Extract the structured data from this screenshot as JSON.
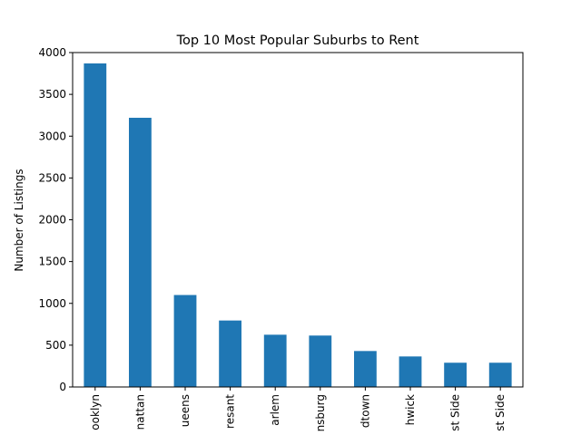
{
  "chart_data": {
    "type": "bar",
    "title": "Top 10 Most Popular Suburbs to Rent",
    "xlabel": "",
    "ylabel": "Number of Listings",
    "categories": [
      "ooklyn",
      "nattan",
      "ueens",
      "resant",
      "arlem",
      "nsburg",
      "dtown",
      "hwick",
      "st Side",
      "st Side"
    ],
    "values": [
      3870,
      3220,
      1100,
      795,
      625,
      615,
      430,
      365,
      290,
      290
    ],
    "ylim": [
      0,
      4000
    ],
    "yticks": [
      0,
      500,
      1000,
      1500,
      2000,
      2500,
      3000,
      3500,
      4000
    ],
    "grid": false,
    "legend": "none",
    "bar_color": "#1f77b4"
  }
}
